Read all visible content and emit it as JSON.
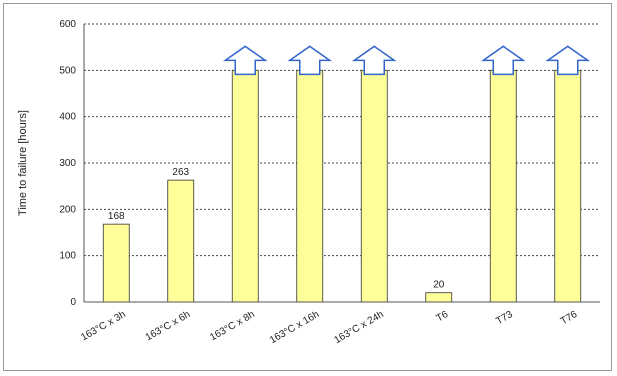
{
  "chart_data": {
    "type": "bar",
    "ylabel": "Time to failure [hours]",
    "ylim": [
      0,
      600
    ],
    "yticks": [
      0,
      100,
      200,
      300,
      400,
      500,
      600
    ],
    "grid": true,
    "categories": [
      "163°C x 3h",
      "163°C x 6h",
      "163°C x 8h",
      "163°C x 16h",
      "163°C x 24h",
      "T6",
      "T73",
      "T76"
    ],
    "values": [
      168,
      263,
      500,
      500,
      500,
      20,
      500,
      500
    ],
    "data_labels": [
      "168",
      "263",
      "",
      "",
      "",
      "20",
      "",
      ""
    ],
    "runout": [
      false,
      false,
      true,
      true,
      true,
      false,
      true,
      true
    ],
    "colors": {
      "bar_fill": "#ffff99",
      "bar_stroke": "#333333",
      "arrow_fill": "#ffffff",
      "arrow_stroke": "#3366cc",
      "grid": "#444444"
    }
  }
}
